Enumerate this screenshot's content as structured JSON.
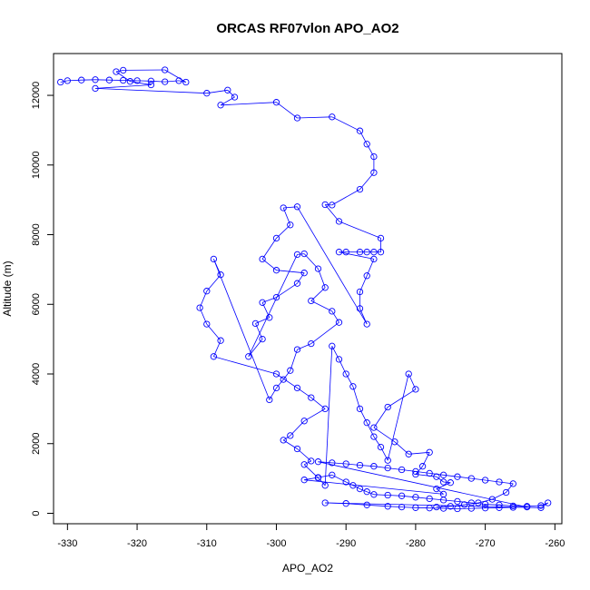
{
  "chart_data": {
    "type": "line",
    "title": "ORCAS RF07vlon APO_AO2",
    "xlabel": "APO_AO2",
    "ylabel": "Altitude (m)",
    "xlim": [
      -332,
      -259
    ],
    "ylim": [
      -300,
      13200
    ],
    "x_ticks": [
      -330,
      -320,
      -310,
      -300,
      -290,
      -280,
      -270,
      -260
    ],
    "y_ticks": [
      0,
      2000,
      4000,
      6000,
      8000,
      10000,
      12000
    ],
    "grid": false,
    "series_color": "#0000ff",
    "marker": "open-circle",
    "points": [
      [
        -331,
        12380
      ],
      [
        -330,
        12420
      ],
      [
        -328,
        12440
      ],
      [
        -326,
        12450
      ],
      [
        -324,
        12440
      ],
      [
        -322,
        12430
      ],
      [
        -320,
        12420
      ],
      [
        -318,
        12410
      ],
      [
        -316,
        12390
      ],
      [
        -314,
        12420
      ],
      [
        -313,
        12380
      ],
      [
        -316,
        12730
      ],
      [
        -322,
        12720
      ],
      [
        -323,
        12680
      ],
      [
        -321,
        12400
      ],
      [
        -318,
        12300
      ],
      [
        -326,
        12200
      ],
      [
        -310,
        12060
      ],
      [
        -307,
        12150
      ],
      [
        -306,
        11950
      ],
      [
        -308,
        11720
      ],
      [
        -300,
        11800
      ],
      [
        -297,
        11350
      ],
      [
        -292,
        11380
      ],
      [
        -288,
        10980
      ],
      [
        -287,
        10600
      ],
      [
        -286,
        10240
      ],
      [
        -286,
        9780
      ],
      [
        -288,
        9300
      ],
      [
        -292,
        8850
      ],
      [
        -293,
        8860
      ],
      [
        -291,
        8380
      ],
      [
        -285,
        7900
      ],
      [
        -285,
        7500
      ],
      [
        -286,
        7500
      ],
      [
        -287,
        7500
      ],
      [
        -288,
        7500
      ],
      [
        -290,
        7500
      ],
      [
        -291,
        7500
      ],
      [
        -286,
        7300
      ],
      [
        -287,
        6820
      ],
      [
        -288,
        6360
      ],
      [
        -288,
        5880
      ],
      [
        -287,
        5430
      ],
      [
        -297,
        8800
      ],
      [
        -299,
        8770
      ],
      [
        -298,
        8280
      ],
      [
        -300,
        7900
      ],
      [
        -302,
        7300
      ],
      [
        -300,
        6980
      ],
      [
        -296,
        6900
      ],
      [
        -297,
        6600
      ],
      [
        -300,
        6200
      ],
      [
        -302,
        6050
      ],
      [
        -301,
        5620
      ],
      [
        -303,
        5450
      ],
      [
        -302,
        5000
      ],
      [
        -304,
        4500
      ],
      [
        -297,
        7430
      ],
      [
        -296,
        7450
      ],
      [
        -294,
        7020
      ],
      [
        -293,
        6480
      ],
      [
        -295,
        6100
      ],
      [
        -292,
        5800
      ],
      [
        -291,
        5480
      ],
      [
        -295,
        4870
      ],
      [
        -297,
        4700
      ],
      [
        -298,
        4100
      ],
      [
        -299,
        3840
      ],
      [
        -300,
        3600
      ],
      [
        -301,
        3260
      ],
      [
        -309,
        7300
      ],
      [
        -308,
        6850
      ],
      [
        -310,
        6380
      ],
      [
        -311,
        5900
      ],
      [
        -310,
        5430
      ],
      [
        -308,
        4960
      ],
      [
        -309,
        4500
      ],
      [
        -300,
        4000
      ],
      [
        -297,
        3600
      ],
      [
        -295,
        3320
      ],
      [
        -293,
        3000
      ],
      [
        -296,
        2650
      ],
      [
        -298,
        2230
      ],
      [
        -299,
        2100
      ],
      [
        -297,
        1850
      ],
      [
        -295,
        1500
      ],
      [
        -296,
        1400
      ],
      [
        -294,
        1020
      ],
      [
        -293,
        800
      ],
      [
        -292,
        4800
      ],
      [
        -291,
        4420
      ],
      [
        -290,
        4000
      ],
      [
        -289,
        3640
      ],
      [
        -288,
        3000
      ],
      [
        -287,
        2600
      ],
      [
        -286,
        2200
      ],
      [
        -285,
        1900
      ],
      [
        -284,
        1520
      ],
      [
        -281,
        4000
      ],
      [
        -280,
        3560
      ],
      [
        -284,
        3050
      ],
      [
        -286,
        2460
      ],
      [
        -283,
        2050
      ],
      [
        -281,
        1700
      ],
      [
        -278,
        1750
      ],
      [
        -279,
        1350
      ],
      [
        -280,
        1120
      ],
      [
        -277,
        1050
      ],
      [
        -276,
        900
      ],
      [
        -275,
        880
      ],
      [
        -277,
        700
      ],
      [
        -276,
        550
      ],
      [
        -296,
        960
      ],
      [
        -294,
        1030
      ],
      [
        -292,
        1100
      ],
      [
        -290,
        900
      ],
      [
        -289,
        800
      ],
      [
        -288,
        700
      ],
      [
        -287,
        620
      ],
      [
        -286,
        540
      ],
      [
        -284,
        520
      ],
      [
        -282,
        500
      ],
      [
        -280,
        460
      ],
      [
        -278,
        420
      ],
      [
        -276,
        380
      ],
      [
        -274,
        340
      ],
      [
        -272,
        300
      ],
      [
        -270,
        260
      ],
      [
        -268,
        240
      ],
      [
        -266,
        210
      ],
      [
        -264,
        200
      ],
      [
        -262,
        220
      ],
      [
        -261,
        300
      ],
      [
        -262,
        160
      ],
      [
        -293,
        300
      ],
      [
        -290,
        280
      ],
      [
        -287,
        240
      ],
      [
        -284,
        200
      ],
      [
        -282,
        180
      ],
      [
        -280,
        160
      ],
      [
        -278,
        150
      ],
      [
        -276,
        140
      ],
      [
        -274,
        130
      ],
      [
        -272,
        140
      ],
      [
        -270,
        150
      ],
      [
        -268,
        160
      ],
      [
        -266,
        170
      ],
      [
        -264,
        180
      ],
      [
        -294,
        1480
      ],
      [
        -292,
        1450
      ],
      [
        -290,
        1420
      ],
      [
        -288,
        1380
      ],
      [
        -286,
        1350
      ],
      [
        -284,
        1300
      ],
      [
        -282,
        1250
      ],
      [
        -280,
        1200
      ],
      [
        -278,
        1150
      ],
      [
        -276,
        1100
      ],
      [
        -274,
        1050
      ],
      [
        -272,
        1000
      ],
      [
        -270,
        950
      ],
      [
        -268,
        900
      ],
      [
        -266,
        850
      ],
      [
        -267,
        600
      ],
      [
        -269,
        400
      ],
      [
        -271,
        300
      ],
      [
        -273,
        250
      ],
      [
        -275,
        200
      ],
      [
        -277,
        180
      ]
    ]
  }
}
